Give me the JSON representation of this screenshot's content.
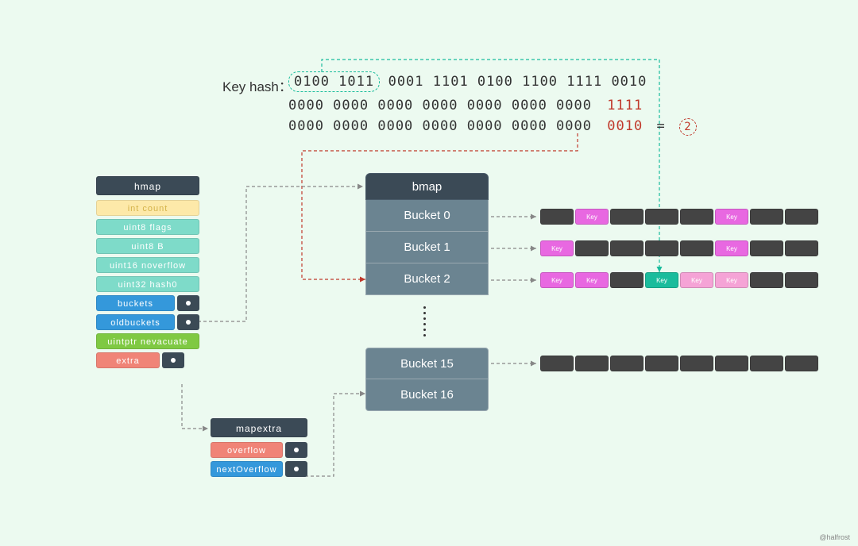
{
  "hash": {
    "label": "Key hash：",
    "line1_circled": "0100  1011",
    "line1_rest": "0001  1101  0100  1100   1111  0010",
    "line2_prefix": "0000 0000 0000 0000 0000 0000 0000",
    "line2_red": "1111",
    "line3_prefix": "0000 0000 0000 0000 0000 0000 0000",
    "line3_red": "0010",
    "equals": "=",
    "result": "2"
  },
  "hmap": {
    "title": "hmap",
    "fields": {
      "count": "int count",
      "flags": "uint8 flags",
      "B": "uint8 B",
      "noverflow": "uint16 noverflow",
      "hash0": "uint32 hash0",
      "buckets": "buckets",
      "oldbuckets": "oldbuckets",
      "nevacuate": "uintptr nevacuate",
      "extra": "extra"
    }
  },
  "mapextra": {
    "title": "mapextra",
    "overflow": "overflow",
    "nextOverflow": "nextOverflow"
  },
  "bmap": {
    "title": "bmap",
    "buckets": [
      "Bucket 0",
      "Bucket 1",
      "Bucket 2"
    ],
    "buckets2": [
      "Bucket 15",
      "Bucket 16"
    ]
  },
  "keylabel": "Key",
  "rows": {
    "r0": [
      "dark",
      "magenta",
      "dark",
      "dark",
      "dark",
      "magenta",
      "dark",
      "dark"
    ],
    "r1": [
      "magenta",
      "dark",
      "dark",
      "dark",
      "dark",
      "magenta",
      "dark",
      "dark"
    ],
    "r2": [
      "magenta",
      "magenta",
      "dark",
      "teal",
      "pink",
      "pink",
      "dark",
      "dark"
    ],
    "r15": [
      "dark",
      "dark",
      "dark",
      "dark",
      "dark",
      "dark",
      "dark",
      "dark"
    ]
  },
  "colors": {
    "bg": "#ecfaf0",
    "dark": "#444444",
    "magenta": "#e868e1",
    "teal": "#1abc9c",
    "pink": "#f5a3d6",
    "header": "#3b4a56",
    "bucket": "#6b8491",
    "red": "#c0392b"
  },
  "watermark": "@halfrost"
}
